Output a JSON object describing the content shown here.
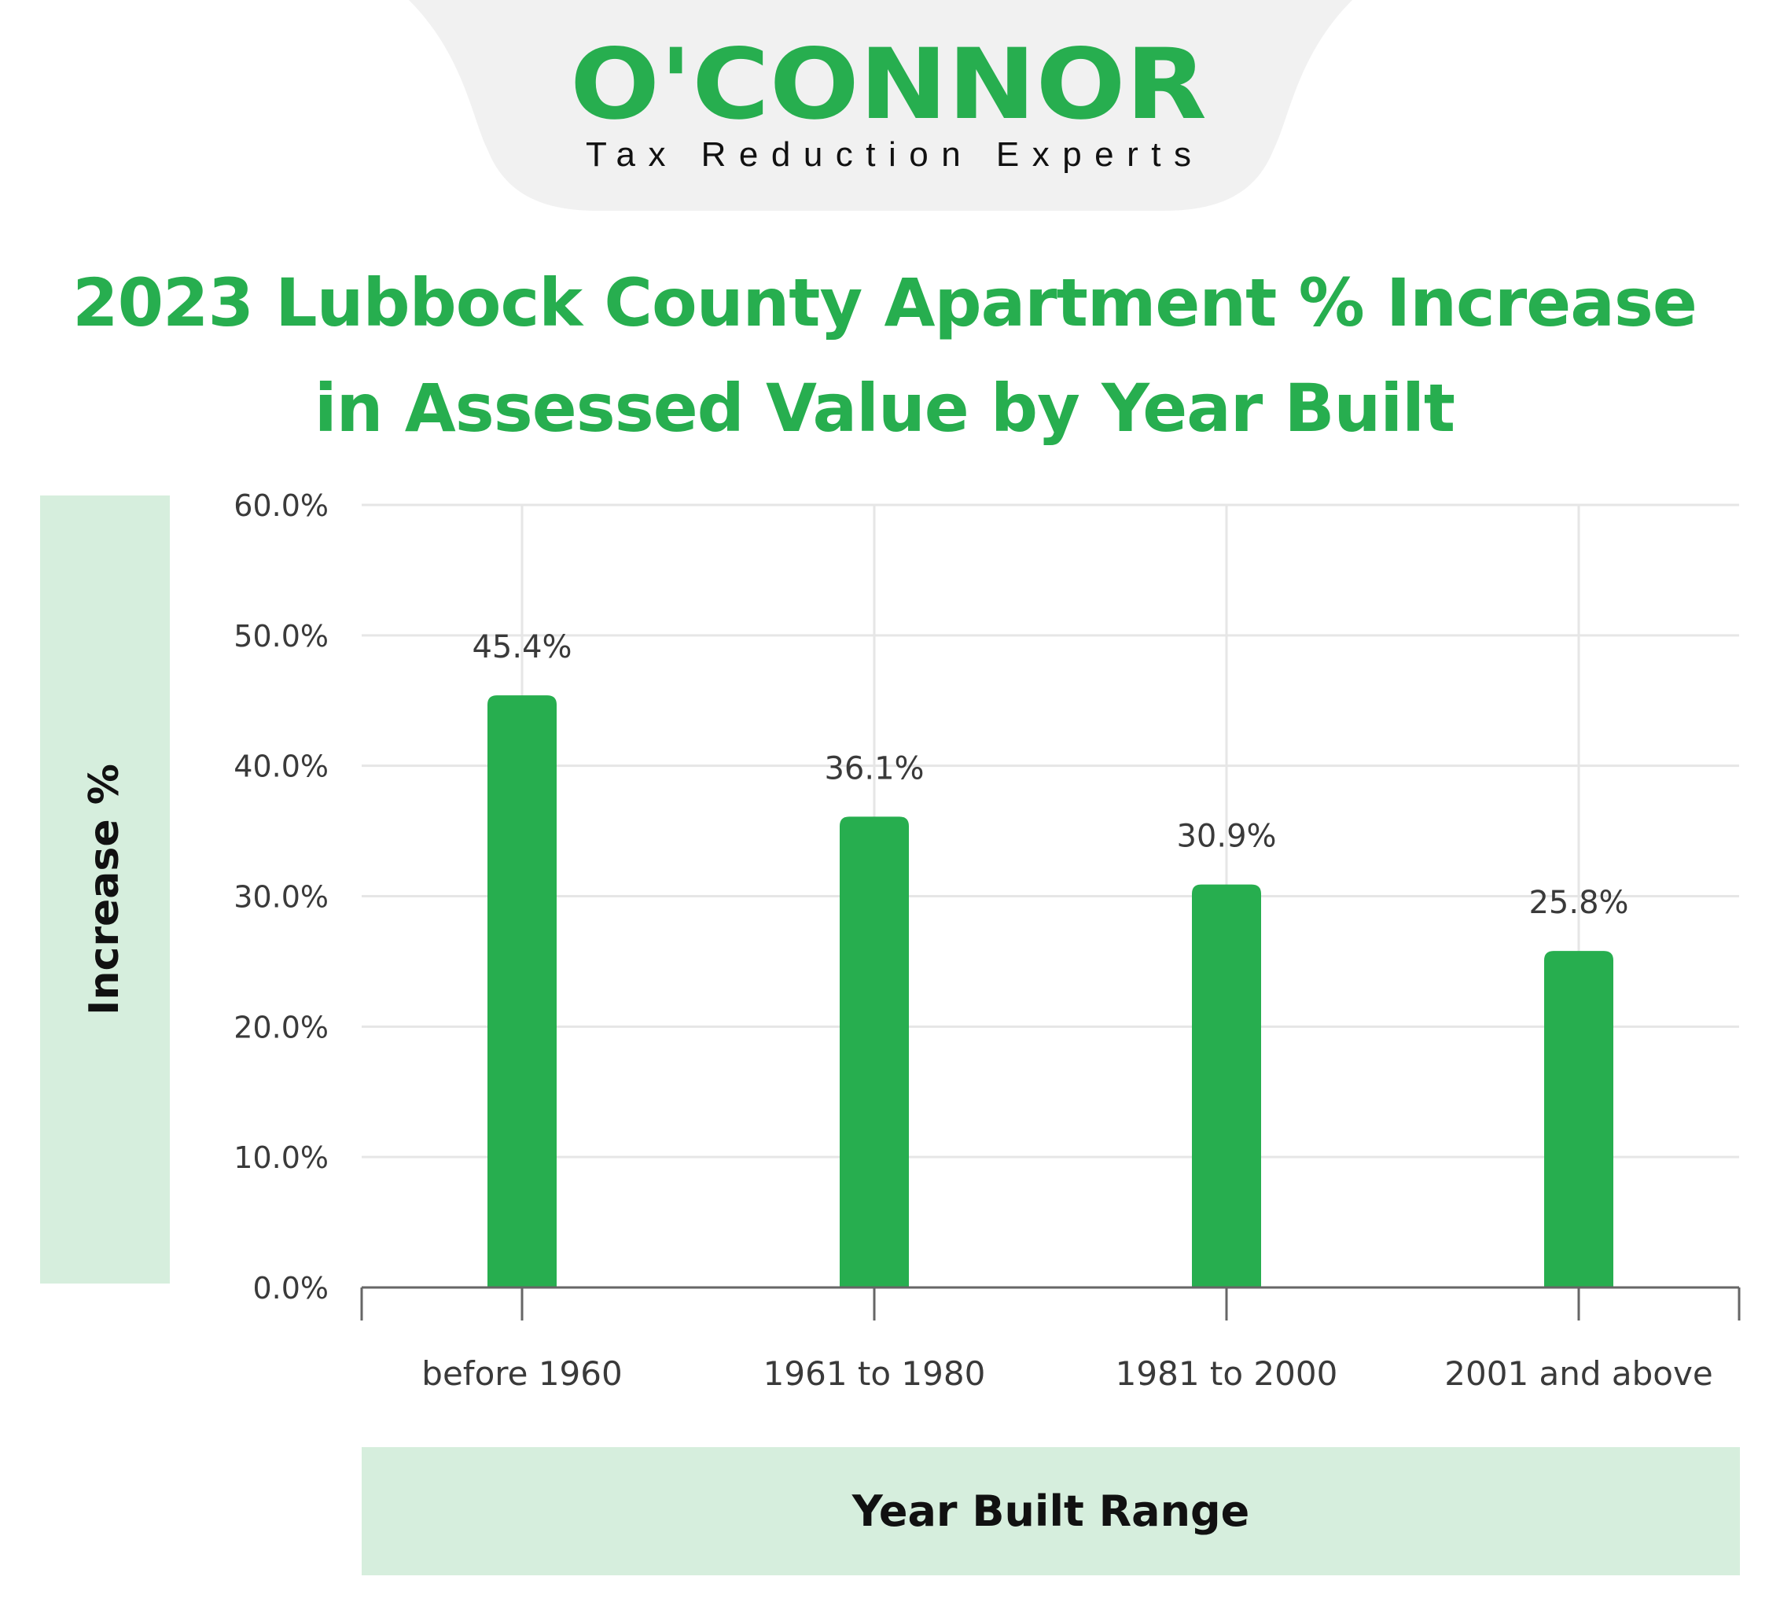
{
  "logo": {
    "name": "O'CONNOR",
    "tagline": "Tax Reduction Experts"
  },
  "colors": {
    "brand_green": "#27ae4f",
    "panel_green": "#d6eedd",
    "header_tab_gray": "#f1f1f1",
    "grid": "#e6e6e6",
    "axis": "#666666",
    "label_text": "#3a3a3a"
  },
  "chart_data": {
    "type": "bar",
    "title": "2023 Lubbock County Apartment % Increase in Assessed Value by Year Built",
    "title_lines": [
      "2023 Lubbock County Apartment % Increase",
      "in Assessed Value by Year Built"
    ],
    "xlabel": "Year Built Range",
    "ylabel": "Increase %",
    "categories": [
      "before 1960",
      "1961 to 1980",
      "1981 to 2000",
      "2001 and above"
    ],
    "values": [
      45.4,
      36.1,
      30.9,
      25.8
    ],
    "data_labels": [
      "45.4%",
      "36.1%",
      "30.9%",
      "25.8%"
    ],
    "ylim": [
      0,
      60
    ],
    "yticks": [
      0,
      10,
      20,
      30,
      40,
      50,
      60
    ],
    "ytick_labels": [
      "0.0%",
      "10.0%",
      "20.0%",
      "30.0%",
      "40.0%",
      "50.0%",
      "60.0%"
    ],
    "grid": true,
    "legend": "none"
  }
}
